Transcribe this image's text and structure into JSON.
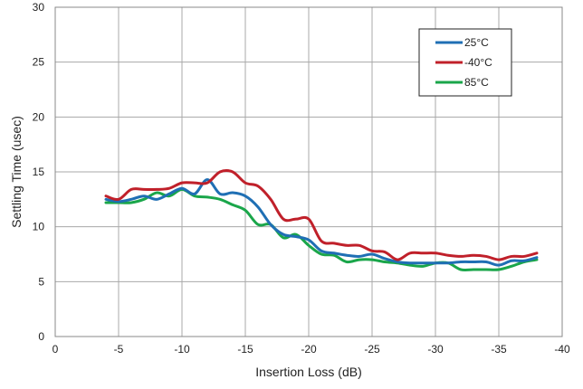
{
  "chart_data": {
    "type": "line",
    "title": "",
    "xlabel": "Insertion Loss (dB)",
    "ylabel": "Settling Time (usec)",
    "xlim": [
      0,
      -40
    ],
    "ylim": [
      0,
      30
    ],
    "x_ticks": [
      0,
      -5,
      -10,
      -15,
      -20,
      -25,
      -30,
      -35,
      -40
    ],
    "y_ticks": [
      0,
      5,
      10,
      15,
      20,
      25,
      30
    ],
    "grid": true,
    "legend_position": "top-right",
    "series": [
      {
        "name": "25°C",
        "color": "#1f6fb4",
        "x": [
          -4,
          -5,
          -6,
          -7,
          -8,
          -9,
          -10,
          -11,
          -12,
          -13,
          -14,
          -15,
          -16,
          -17,
          -18,
          -19,
          -20,
          -21,
          -22,
          -23,
          -24,
          -25,
          -26,
          -27,
          -28,
          -29,
          -30,
          -31,
          -32,
          -33,
          -34,
          -35,
          -36,
          -37,
          -38
        ],
        "y": [
          12.5,
          12.3,
          12.5,
          12.8,
          12.5,
          13.0,
          13.5,
          13.0,
          14.3,
          13.0,
          13.1,
          12.8,
          11.8,
          10.2,
          9.3,
          9.1,
          8.8,
          7.8,
          7.6,
          7.4,
          7.3,
          7.5,
          7.1,
          6.8,
          6.7,
          6.7,
          6.7,
          6.7,
          6.8,
          6.8,
          6.8,
          6.5,
          6.9,
          6.9,
          7.2
        ]
      },
      {
        "name": "-40°C",
        "color": "#c0202a",
        "x": [
          -4,
          -5,
          -6,
          -7,
          -8,
          -9,
          -10,
          -11,
          -12,
          -13,
          -14,
          -15,
          -16,
          -17,
          -18,
          -19,
          -20,
          -21,
          -22,
          -23,
          -24,
          -25,
          -26,
          -27,
          -28,
          -29,
          -30,
          -31,
          -32,
          -33,
          -34,
          -35,
          -36,
          -37,
          -38
        ],
        "y": [
          12.8,
          12.5,
          13.4,
          13.4,
          13.4,
          13.5,
          14.0,
          14.0,
          14.0,
          15.0,
          15.0,
          14.0,
          13.7,
          12.5,
          10.7,
          10.7,
          10.7,
          8.7,
          8.5,
          8.3,
          8.3,
          7.8,
          7.7,
          7.0,
          7.6,
          7.6,
          7.6,
          7.4,
          7.3,
          7.4,
          7.3,
          7.0,
          7.3,
          7.3,
          7.6
        ]
      },
      {
        "name": "85°C",
        "color": "#1aa64a",
        "x": [
          -4,
          -5,
          -6,
          -7,
          -8,
          -9,
          -10,
          -11,
          -12,
          -13,
          -14,
          -15,
          -16,
          -17,
          -18,
          -19,
          -20,
          -21,
          -22,
          -23,
          -24,
          -25,
          -26,
          -27,
          -28,
          -29,
          -30,
          -31,
          -32,
          -33,
          -34,
          -35,
          -36,
          -37,
          -38
        ],
        "y": [
          12.2,
          12.2,
          12.2,
          12.5,
          13.1,
          12.8,
          13.4,
          12.8,
          12.7,
          12.5,
          12.0,
          11.5,
          10.2,
          10.2,
          9.0,
          9.3,
          8.3,
          7.5,
          7.4,
          6.8,
          7.0,
          7.0,
          6.8,
          6.7,
          6.5,
          6.4,
          6.7,
          6.7,
          6.1,
          6.1,
          6.1,
          6.1,
          6.4,
          6.8,
          7.0
        ]
      }
    ]
  }
}
